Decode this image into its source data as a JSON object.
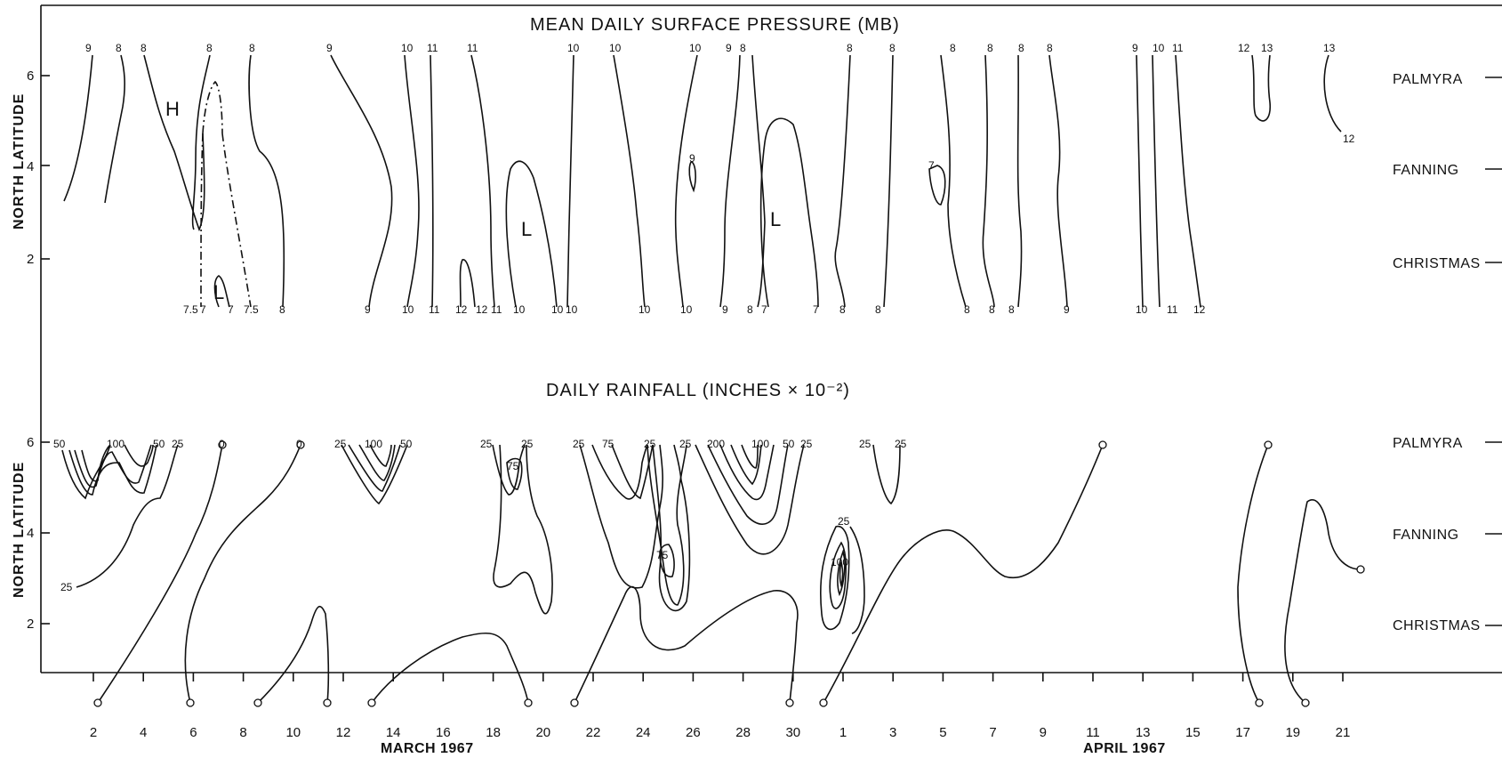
{
  "top_chart": {
    "title": "MEAN DAILY SURFACE PRESSURE (MB)",
    "ylabel": "NORTH LATITUDE",
    "yticks": [
      "2",
      "4",
      "6"
    ],
    "symbols": [
      "H",
      "L",
      "L",
      "L"
    ],
    "contour_labels_top": [
      "9",
      "8",
      "8",
      "8",
      "8",
      "9",
      "10",
      "11",
      "11",
      "10",
      "10",
      "10",
      "9",
      "8",
      "8",
      "8",
      "8",
      "8",
      "8",
      "8",
      "9",
      "10",
      "11",
      "12",
      "13",
      "13",
      "12"
    ],
    "contour_labels_bottom": [
      "7.5",
      "7",
      "7",
      "7.5",
      "8",
      "9",
      "10",
      "11",
      "12",
      "12",
      "11",
      "10",
      "10",
      "10",
      "10",
      "10",
      "9",
      "8",
      "7",
      "7",
      "8",
      "8",
      "8",
      "8",
      "8",
      "9",
      "10",
      "11",
      "12"
    ],
    "contour_labels_inner": [
      "9",
      "7",
      "12"
    ],
    "stations": [
      "PALMYRA",
      "FANNING",
      "CHRISTMAS"
    ]
  },
  "bottom_chart": {
    "title": "DAILY RAINFALL (INCHES × 10⁻²)",
    "ylabel": "NORTH LATITUDE",
    "yticks": [
      "2",
      "4",
      "6"
    ],
    "contour_labels_top": [
      "50",
      "100",
      "50",
      "25",
      "0",
      "0",
      "25",
      "100",
      "50",
      "25",
      "25",
      "25",
      "75",
      "25",
      "25",
      "200",
      "100",
      "50",
      "25",
      "25",
      "25",
      "0",
      "0"
    ],
    "contour_labels_inner": [
      "75",
      "75",
      "25",
      "100",
      "25",
      "0"
    ],
    "stations": [
      "PALMYRA",
      "FANNING",
      "CHRISTMAS"
    ]
  },
  "x_axis": {
    "march_ticks": [
      "2",
      "4",
      "6",
      "8",
      "10",
      "12",
      "14",
      "16",
      "18",
      "20",
      "22",
      "24",
      "26",
      "28",
      "30"
    ],
    "april_ticks": [
      "1",
      "3",
      "5",
      "7",
      "9",
      "11",
      "13",
      "15",
      "17",
      "19",
      "21"
    ],
    "march_label": "MARCH 1967",
    "april_label": "APRIL 1967"
  }
}
